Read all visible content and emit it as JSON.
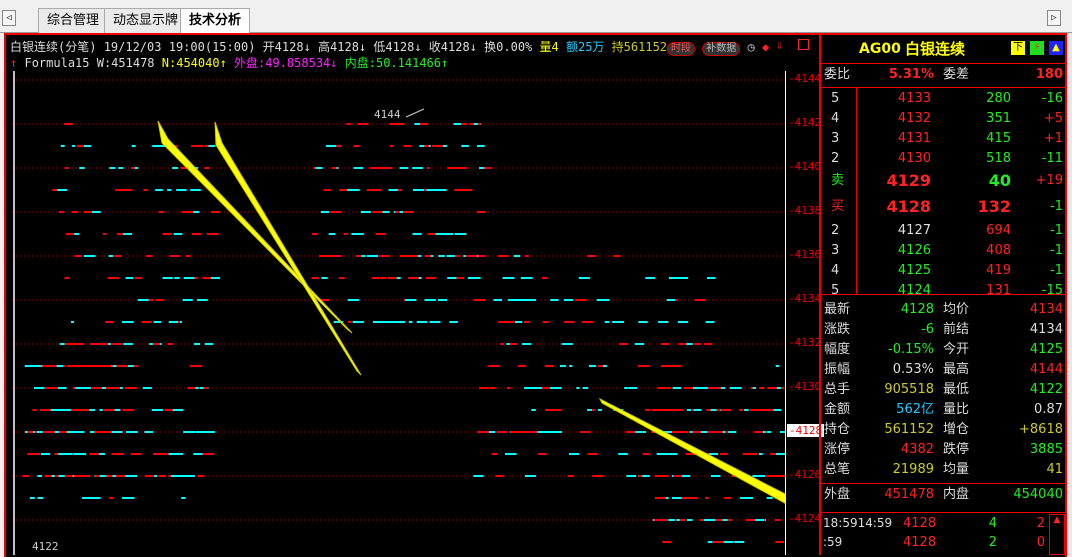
{
  "tabs": [
    "综合管理",
    "动态显示牌",
    "技术分析"
  ],
  "nav": {
    "left": "◁",
    "right": "▷"
  },
  "header": {
    "title": "白银连续(分笔)",
    "date": "19/12/03",
    "time": "19:00(15:00)",
    "open": "开4128",
    "high": "高4128",
    "low": "低4128",
    "close": "收4128",
    "turnover": "换0.00%",
    "volume": "量4",
    "amount": "额25万",
    "position": "持561152",
    "btn_period": "时段",
    "btn_fill": "补数据",
    "arrow_down": "↓",
    "arrow_up": "↑"
  },
  "indicator": {
    "name": "Formula15",
    "w": "W:451478",
    "n": "N:454040",
    "outer": "外盘:49.858534",
    "inner": "内盘:50.141466"
  },
  "chart": {
    "y_ticks": [
      "4144",
      "4142",
      "4140",
      "4138",
      "4136",
      "4134",
      "4132",
      "4130",
      "4128",
      "4126",
      "4124"
    ],
    "current_price": "4128",
    "high_marker": "4144",
    "low_marker": "4122",
    "colors": {
      "up": "#ff0000",
      "down": "#00ffff",
      "grid": "#990000",
      "arrow": "#ffff00"
    }
  },
  "quote": {
    "code": "AG00",
    "name": "白银连续",
    "icons": [
      "下",
      "⚡",
      "▲"
    ],
    "weibi_label": "委比",
    "weibi": "5.31%",
    "weicha_label": "委差",
    "weicha": "180",
    "asks": [
      {
        "level": "5",
        "price": "4133",
        "vol": "280",
        "chg": "-16"
      },
      {
        "level": "4",
        "price": "4132",
        "vol": "351",
        "chg": "+5"
      },
      {
        "level": "3",
        "price": "4131",
        "vol": "415",
        "chg": "+1"
      },
      {
        "level": "2",
        "price": "4130",
        "vol": "518",
        "chg": "-11"
      },
      {
        "level": "卖",
        "price": "4129",
        "vol": "40",
        "chg": "+19"
      }
    ],
    "bids": [
      {
        "level": "买",
        "price": "4128",
        "vol": "132",
        "chg": "-1"
      },
      {
        "level": "2",
        "price": "4127",
        "vol": "694",
        "chg": "-1"
      },
      {
        "level": "3",
        "price": "4126",
        "vol": "408",
        "chg": "-1"
      },
      {
        "level": "4",
        "price": "4125",
        "vol": "419",
        "chg": "-1"
      },
      {
        "level": "5",
        "price": "4124",
        "vol": "131",
        "chg": "-15"
      }
    ],
    "stats": [
      {
        "l1": "最新",
        "v1": "4128",
        "c1": "g",
        "l2": "均价",
        "v2": "4134",
        "c2": "r"
      },
      {
        "l1": "涨跌",
        "v1": "-6",
        "c1": "g",
        "l2": "前结",
        "v2": "4134",
        "c2": "w"
      },
      {
        "l1": "幅度",
        "v1": "-0.15%",
        "c1": "g",
        "l2": "今开",
        "v2": "4125",
        "c2": "g"
      },
      {
        "l1": "振幅",
        "v1": "0.53%",
        "c1": "w",
        "l2": "最高",
        "v2": "4144",
        "c2": "r"
      },
      {
        "l1": "总手",
        "v1": "905518",
        "c1": "y",
        "l2": "最低",
        "v2": "4122",
        "c2": "g"
      },
      {
        "l1": "金额",
        "v1": "562亿",
        "c1": "c",
        "l2": "量比",
        "v2": "0.87",
        "c2": "w"
      },
      {
        "l1": "持仓",
        "v1": "561152",
        "c1": "y",
        "l2": "增仓",
        "v2": "+8618",
        "c2": "y"
      },
      {
        "l1": "涨停",
        "v1": "4382",
        "c1": "r",
        "l2": "跌停",
        "v2": "3885",
        "c2": "g"
      },
      {
        "l1": "总笔",
        "v1": "21989",
        "c1": "y",
        "l2": "均量",
        "v2": "41",
        "c2": "y"
      }
    ],
    "outer_label": "外盘",
    "outer": "451478",
    "inner_label": "内盘",
    "inner": "454040",
    "ticks": [
      {
        "time": "18:5914:59",
        "price": "4128",
        "vol": "4",
        "pos": "2"
      },
      {
        "time": ":59",
        "price": "4128",
        "vol": "2",
        "pos": "0"
      }
    ]
  }
}
